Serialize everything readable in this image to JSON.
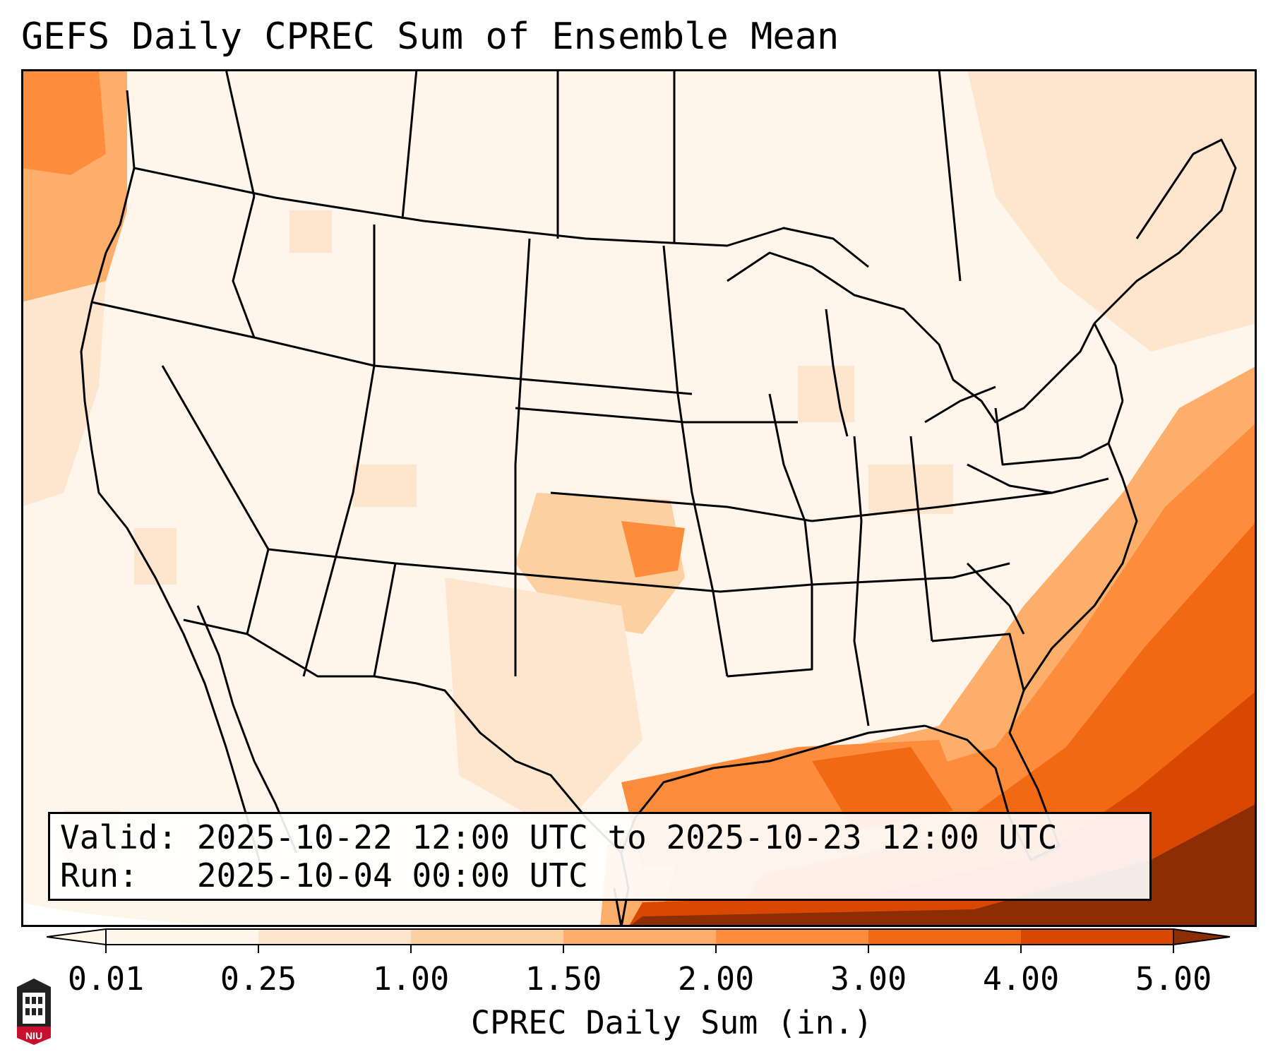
{
  "title": "GEFS Daily CPREC Sum of Ensemble Mean",
  "info": {
    "valid_label": "Valid:",
    "valid_value": "2025-10-22 12:00 UTC to 2025-10-23 12:00 UTC",
    "run_label": "Run:",
    "run_value": "2025-10-04 00:00 UTC"
  },
  "colorbar": {
    "label": "CPREC Daily Sum (in.)",
    "ticks": [
      "0.01",
      "0.25",
      "1.00",
      "1.50",
      "2.00",
      "3.00",
      "4.00",
      "5.00"
    ],
    "colors": [
      "#fff5eb",
      "#fee6ce",
      "#fdd0a2",
      "#fdae6b",
      "#fd8d3c",
      "#f16913",
      "#d94801",
      "#8c2d04"
    ],
    "extend": "both"
  },
  "logo": {
    "text": "NIU",
    "icon": "university-tower-icon",
    "color": "#c8102e"
  },
  "colors": {
    "frame": "#000000",
    "background": "#ffffff"
  }
}
